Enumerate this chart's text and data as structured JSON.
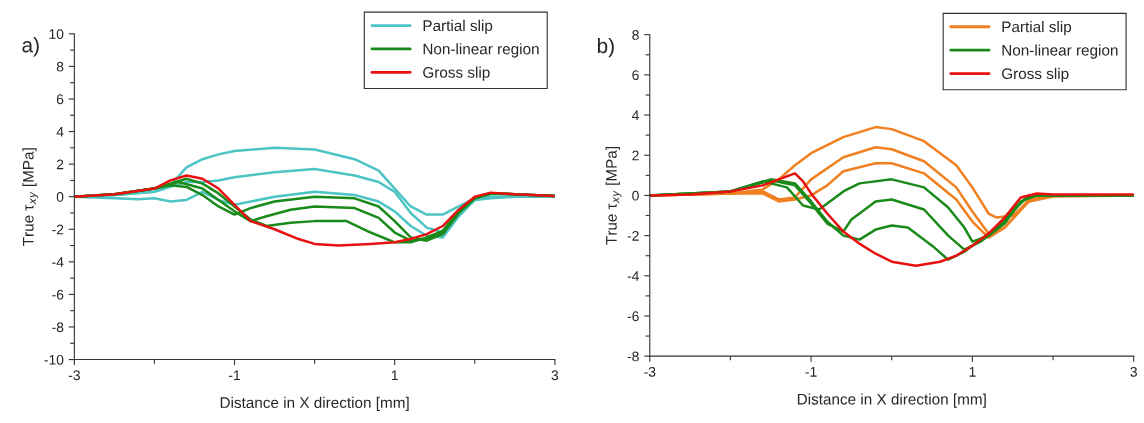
{
  "chart_data": [
    {
      "type": "line",
      "title": "a)",
      "xlabel": "Distance in X direction [mm]",
      "ylabel": "True τ$_{xy}$ [MPa]",
      "xlim": [
        -3,
        3
      ],
      "xticks": [
        -3,
        {
          "value": -2,
          "label": null
        },
        -1,
        {
          "value": 0,
          "label": null
        },
        1,
        {
          "value": 2,
          "label": null
        },
        3
      ],
      "ylim": [
        -10,
        10
      ],
      "yticks": [
        -10,
        {
          "value": -9,
          "label": null
        },
        -8,
        {
          "value": -7,
          "label": null
        },
        -6,
        {
          "value": -5,
          "label": null
        },
        -4,
        {
          "value": -3,
          "label": null
        },
        -2,
        {
          "value": -1,
          "label": null
        },
        0,
        {
          "value": 1,
          "label": null
        },
        2,
        {
          "value": 3,
          "label": null
        },
        4,
        {
          "value": 5,
          "label": null
        },
        6,
        {
          "value": 7,
          "label": null
        },
        8,
        {
          "value": 9,
          "label": null
        },
        10
      ],
      "grid": false,
      "legend": "top right",
      "marker": "none",
      "line_style": "solid",
      "series": [
        {
          "name": "Partial slip",
          "color": "#4cc4c4",
          "x": [
            -3,
            -2.5,
            -2,
            -1.8,
            -1.6,
            -1.4,
            -1.2,
            -1,
            -0.5,
            0,
            0.5,
            0.8,
            1,
            1.2,
            1.4,
            1.6,
            1.8,
            2,
            2.2,
            2.5,
            3
          ],
          "values": [
            0,
            0.1,
            0.3,
            0.7,
            1.8,
            2.3,
            2.6,
            2.8,
            3.0,
            2.9,
            2.3,
            1.6,
            0.5,
            -0.6,
            -1.1,
            -1.1,
            -0.6,
            -0.1,
            0,
            0,
            0
          ]
        },
        {
          "color": "#4cc4c4",
          "x": [
            -3,
            -2.5,
            -2,
            -1.8,
            -1.6,
            -1.4,
            -1.2,
            -1,
            -0.5,
            0,
            0.5,
            0.8,
            1,
            1.2,
            1.4,
            1.6,
            1.8,
            2,
            2.2,
            2.5,
            3
          ],
          "values": [
            0,
            0.1,
            0.3,
            0.6,
            0.9,
            0.9,
            1.0,
            1.2,
            1.5,
            1.7,
            1.3,
            0.9,
            0.3,
            -1.0,
            -1.9,
            -2.2,
            -1.2,
            -0.2,
            0,
            0,
            0
          ]
        },
        {
          "color": "#4cc4c4",
          "x": [
            -3,
            -2.5,
            -2.2,
            -2,
            -1.8,
            -1.6,
            -1.4,
            -1.2,
            -1,
            -0.5,
            0,
            0.5,
            0.8,
            1,
            1.2,
            1.4,
            1.6,
            1.8,
            2,
            2.2,
            2.5,
            3
          ],
          "values": [
            0,
            -0.1,
            -0.15,
            -0.1,
            -0.3,
            -0.2,
            0.3,
            -0.2,
            -0.5,
            0,
            0.3,
            0.1,
            -0.3,
            -0.9,
            -1.8,
            -2.4,
            -2.5,
            -1.2,
            -0.2,
            -0.1,
            0,
            0
          ]
        },
        {
          "name": "Non-linear region",
          "color": "#1a8a1a",
          "x": [
            -3,
            -2.5,
            -2,
            -1.8,
            -1.6,
            -1.4,
            -1.2,
            -1,
            -0.8,
            -0.5,
            0,
            0.5,
            0.8,
            1,
            1.2,
            1.4,
            1.6,
            1.8,
            2,
            2.2,
            2.5,
            3
          ],
          "values": [
            0,
            0.15,
            0.5,
            0.7,
            0.6,
            0.1,
            -0.6,
            -1.1,
            -0.7,
            -0.3,
            0,
            -0.1,
            -0.6,
            -1.5,
            -2.5,
            -2.7,
            -2.3,
            -1.0,
            -0.1,
            0.2,
            0.15,
            0.05
          ]
        },
        {
          "color": "#1a8a1a",
          "x": [
            -3,
            -2.5,
            -2,
            -1.7,
            -1.4,
            -1.2,
            -1,
            -0.8,
            -0.6,
            -0.3,
            0,
            0.5,
            0.8,
            1,
            1.2,
            1.4,
            1.6,
            1.8,
            2,
            2.2,
            2.5,
            3
          ],
          "values": [
            0,
            0.15,
            0.5,
            0.9,
            0.5,
            -0.2,
            -0.9,
            -1.5,
            -1.2,
            -0.8,
            -0.6,
            -0.7,
            -1.3,
            -2.2,
            -2.7,
            -2.6,
            -2.2,
            -0.9,
            -0.1,
            0.2,
            0.15,
            0.05
          ]
        },
        {
          "color": "#1a8a1a",
          "x": [
            -3,
            -2.5,
            -2,
            -1.6,
            -1.4,
            -1.2,
            -1,
            -0.8,
            -0.6,
            -0.3,
            0,
            0.4,
            0.7,
            1,
            1.2,
            1.4,
            1.6,
            1.8,
            2,
            2.2,
            2.5,
            3
          ],
          "values": [
            0,
            0.15,
            0.5,
            1.1,
            0.8,
            0.2,
            -0.6,
            -1.4,
            -1.8,
            -1.6,
            -1.5,
            -1.5,
            -2.2,
            -2.8,
            -2.8,
            -2.5,
            -2.1,
            -0.9,
            -0.1,
            0.2,
            0.15,
            0.05
          ]
        },
        {
          "name": "Gross slip",
          "color": "#e81010",
          "x": [
            -3,
            -2.5,
            -2,
            -1.8,
            -1.6,
            -1.4,
            -1.2,
            -1,
            -0.8,
            -0.5,
            -0.2,
            0,
            0.3,
            0.7,
            1,
            1.2,
            1.4,
            1.6,
            1.8,
            2,
            2.2,
            2.5,
            3
          ],
          "values": [
            0,
            0.15,
            0.5,
            1.0,
            1.3,
            1.1,
            0.5,
            -0.5,
            -1.5,
            -2.0,
            -2.6,
            -2.9,
            -3.0,
            -2.9,
            -2.8,
            -2.6,
            -2.3,
            -1.8,
            -0.8,
            0,
            0.25,
            0.15,
            0.05
          ]
        }
      ]
    },
    {
      "type": "line",
      "title": "b)",
      "xlabel": "Distance in X direction [mm]",
      "ylabel": "True τ$_{xy}$ [MPa]",
      "xlim": [
        -3,
        3
      ],
      "xticks": [
        -3,
        {
          "value": -2,
          "label": null
        },
        -1,
        {
          "value": 0,
          "label": null
        },
        1,
        {
          "value": 2,
          "label": null
        },
        3
      ],
      "ylim": [
        -8,
        8
      ],
      "yticks": [
        -8,
        {
          "value": -7,
          "label": null
        },
        -6,
        {
          "value": -5,
          "label": null
        },
        -4,
        {
          "value": -3,
          "label": null
        },
        -2,
        {
          "value": -1,
          "label": null
        },
        0,
        {
          "value": 1,
          "label": null
        },
        2,
        {
          "value": 3,
          "label": null
        },
        4,
        {
          "value": 5,
          "label": null
        },
        6,
        {
          "value": 7,
          "label": null
        },
        8
      ],
      "grid": false,
      "legend": "top right",
      "marker": "none",
      "line_style": "solid",
      "series": [
        {
          "name": "Partial slip",
          "color": "#f08020",
          "x": [
            -3,
            -2,
            -1.6,
            -1.4,
            -1.2,
            -1,
            -0.6,
            -0.2,
            0,
            0.4,
            0.8,
            1,
            1.2,
            1.3,
            1.5,
            1.7,
            2,
            3
          ],
          "values": [
            0,
            0.1,
            0.3,
            0.8,
            1.5,
            2.1,
            2.9,
            3.4,
            3.3,
            2.7,
            1.5,
            0.4,
            -0.9,
            -1.1,
            -1.0,
            -0.3,
            -0.05,
            0
          ]
        },
        {
          "color": "#f08020",
          "x": [
            -3,
            -2,
            -1.6,
            -1.4,
            -1.2,
            -1,
            -0.6,
            -0.2,
            0,
            0.4,
            0.8,
            1,
            1.2,
            1.4,
            1.7,
            2,
            3
          ],
          "values": [
            0,
            0.1,
            0.2,
            -0.2,
            -0.1,
            0.8,
            1.9,
            2.4,
            2.3,
            1.7,
            0.4,
            -0.8,
            -1.9,
            -1.6,
            -0.2,
            0,
            0
          ]
        },
        {
          "color": "#f08020",
          "x": [
            -3,
            -2,
            -1.6,
            -1.4,
            -1.2,
            -1,
            -0.8,
            -0.6,
            -0.2,
            0,
            0.4,
            0.8,
            1,
            1.2,
            1.4,
            1.7,
            2,
            3
          ],
          "values": [
            0,
            0.1,
            0.1,
            -0.3,
            -0.2,
            0,
            0.5,
            1.2,
            1.6,
            1.6,
            1.1,
            -0.2,
            -1.3,
            -2.1,
            -1.6,
            -0.3,
            0,
            0
          ]
        },
        {
          "name": "Non-linear region",
          "color": "#1a8a1a",
          "x": [
            -3,
            -2,
            -1.6,
            -1.3,
            -1.1,
            -0.9,
            -0.8,
            -0.6,
            -0.4,
            0,
            0.4,
            0.7,
            0.9,
            1,
            1.2,
            1.4,
            1.6,
            1.8,
            3
          ],
          "values": [
            0,
            0.2,
            0.7,
            0.4,
            -0.5,
            -0.7,
            -0.4,
            0.2,
            0.6,
            0.8,
            0.4,
            -0.6,
            -1.6,
            -2.3,
            -2.0,
            -1.4,
            -0.3,
            0,
            0
          ]
        },
        {
          "color": "#1a8a1a",
          "x": [
            -3,
            -2,
            -1.5,
            -1.2,
            -1,
            -0.8,
            -0.6,
            -0.5,
            -0.2,
            0,
            0.4,
            0.7,
            0.9,
            1.1,
            1.3,
            1.5,
            1.7,
            2,
            3
          ],
          "values": [
            0,
            0.2,
            0.75,
            0.5,
            -0.4,
            -1.4,
            -1.8,
            -1.2,
            -0.3,
            -0.2,
            -0.7,
            -2.0,
            -2.7,
            -2.3,
            -1.7,
            -0.8,
            0,
            0,
            0
          ]
        },
        {
          "color": "#1a8a1a",
          "x": [
            -3,
            -2,
            -1.5,
            -1.2,
            -1,
            -0.8,
            -0.6,
            -0.4,
            -0.2,
            0,
            0.2,
            0.5,
            0.7,
            0.9,
            1.1,
            1.3,
            1.5,
            1.7,
            2,
            3
          ],
          "values": [
            0,
            0.2,
            0.8,
            0.6,
            -0.3,
            -1.3,
            -2.0,
            -2.2,
            -1.7,
            -1.5,
            -1.6,
            -2.5,
            -3.2,
            -2.8,
            -2.2,
            -1.6,
            -0.7,
            0,
            0,
            0
          ]
        },
        {
          "name": "Gross slip",
          "color": "#e81010",
          "x": [
            -3,
            -2.5,
            -2,
            -1.6,
            -1.4,
            -1.2,
            -1.1,
            -1,
            -0.8,
            -0.6,
            -0.4,
            -0.2,
            0,
            0.3,
            0.6,
            0.8,
            1,
            1.2,
            1.4,
            1.6,
            1.8,
            2,
            3
          ],
          "values": [
            0,
            0.05,
            0.2,
            0.5,
            0.8,
            1.1,
            0.7,
            0.1,
            -0.9,
            -1.8,
            -2.4,
            -2.9,
            -3.3,
            -3.5,
            -3.3,
            -3.0,
            -2.5,
            -1.9,
            -1.1,
            -0.1,
            0.1,
            0.05,
            0.05
          ]
        }
      ]
    }
  ]
}
